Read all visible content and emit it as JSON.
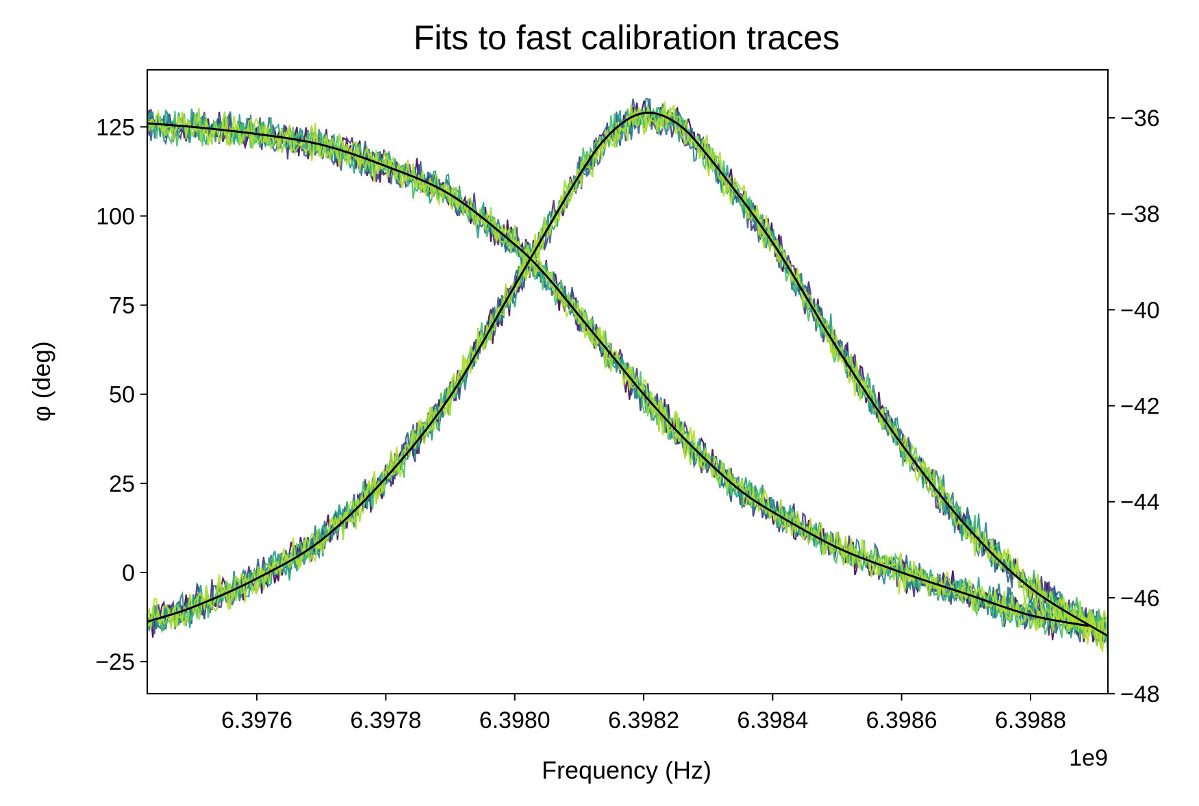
{
  "chart_data": {
    "type": "line",
    "title": "Fits to fast calibration traces",
    "xlabel": "Frequency (Hz)",
    "ylabel": "φ (deg)",
    "x_offset_label": "1e9",
    "xlim": [
      6.39743,
      6.39892
    ],
    "ylim": [
      -34,
      141
    ],
    "y2lim": [
      -48,
      -35
    ],
    "x_ticks": [
      6.3976,
      6.3978,
      6.398,
      6.3982,
      6.3984,
      6.3986,
      6.3988
    ],
    "x_tick_labels": [
      "6.3976",
      "6.3978",
      "6.3980",
      "6.3982",
      "6.3984",
      "6.3986",
      "6.3988"
    ],
    "y_ticks": [
      -25,
      0,
      25,
      50,
      75,
      100,
      125
    ],
    "y_tick_labels": [
      "−25",
      "0",
      "25",
      "50",
      "75",
      "100",
      "125"
    ],
    "y2_ticks": [
      -48,
      -46,
      -44,
      -42,
      -40,
      -38,
      -36
    ],
    "y2_tick_labels": [
      "−48",
      "−46",
      "−44",
      "−42",
      "−40",
      "−38",
      "−36"
    ],
    "grid": false,
    "n_traces": 8,
    "trace_colors": [
      "#440154",
      "#46327e",
      "#365c8d",
      "#277f8e",
      "#1fa187",
      "#4ac16d",
      "#a0da39",
      "#b5de2b"
    ],
    "fit_color": "#000000",
    "phase_fit": {
      "axis": "left",
      "x": [
        6.39743,
        6.3975,
        6.3976,
        6.3977,
        6.3978,
        6.3979,
        6.398,
        6.39805,
        6.3981,
        6.39815,
        6.3982,
        6.39825,
        6.3983,
        6.39835,
        6.3984,
        6.3985,
        6.3986,
        6.3987,
        6.3988,
        6.39889
      ],
      "values": [
        126,
        125,
        123,
        120,
        114,
        106,
        92,
        83,
        72,
        61,
        50,
        40,
        31,
        23,
        17,
        7,
        0,
        -6,
        -12,
        -15
      ]
    },
    "magnitude_fit": {
      "axis": "right",
      "x": [
        6.39743,
        6.3975,
        6.3976,
        6.3977,
        6.3978,
        6.3979,
        6.398,
        6.3981,
        6.39815,
        6.3982,
        6.39825,
        6.3983,
        6.3984,
        6.3985,
        6.3986,
        6.3987,
        6.3988,
        6.39892
      ],
      "values": [
        -46.5,
        -46.2,
        -45.6,
        -44.8,
        -43.5,
        -41.8,
        -39.5,
        -37.2,
        -36.3,
        -35.9,
        -36.1,
        -36.8,
        -38.6,
        -40.8,
        -42.8,
        -44.5,
        -45.8,
        -46.8
      ]
    }
  }
}
